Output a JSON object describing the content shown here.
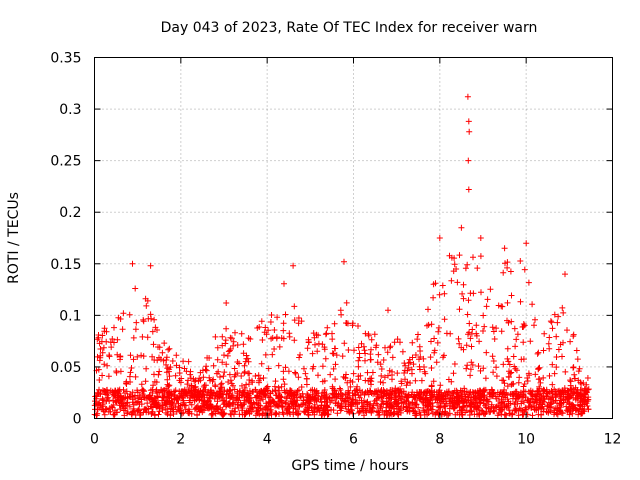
{
  "chart_data": {
    "type": "scatter",
    "title": "Day 043 of 2023, Rate Of TEC Index for receiver warn",
    "xlabel": "GPS time / hours",
    "ylabel": "ROTI / TECUs",
    "xlim": [
      0,
      12
    ],
    "ylim": [
      0,
      0.35
    ],
    "xticks": [
      0,
      2,
      4,
      6,
      8,
      10,
      12
    ],
    "xtick_labels": [
      "0",
      "2",
      "4",
      "6",
      "8",
      "10",
      "12"
    ],
    "yticks": [
      0,
      0.05,
      0.1,
      0.15,
      0.2,
      0.25,
      0.3,
      0.35
    ],
    "ytick_labels": [
      "0",
      "0.05",
      "0.1",
      "0.15",
      "0.2",
      "0.25",
      "0.3",
      "0.35"
    ],
    "grid": true,
    "marker": "+",
    "marker_color": "#ff0000",
    "x_range_of_data": [
      0,
      11.45
    ],
    "notable_points": [
      {
        "x": 0.88,
        "y": 0.15
      },
      {
        "x": 1.3,
        "y": 0.148
      },
      {
        "x": 3.05,
        "y": 0.112
      },
      {
        "x": 4.6,
        "y": 0.148
      },
      {
        "x": 5.78,
        "y": 0.152
      },
      {
        "x": 6.8,
        "y": 0.105
      },
      {
        "x": 8.0,
        "y": 0.175
      },
      {
        "x": 8.5,
        "y": 0.185
      },
      {
        "x": 8.65,
        "y": 0.312
      },
      {
        "x": 8.67,
        "y": 0.288
      },
      {
        "x": 8.68,
        "y": 0.278
      },
      {
        "x": 8.66,
        "y": 0.25
      },
      {
        "x": 8.67,
        "y": 0.222
      },
      {
        "x": 8.95,
        "y": 0.175
      },
      {
        "x": 9.5,
        "y": 0.165
      },
      {
        "x": 10.0,
        "y": 0.17
      },
      {
        "x": 10.9,
        "y": 0.14
      }
    ],
    "envelope": {
      "hours": [
        0,
        0.3,
        0.6,
        0.9,
        1.2,
        1.5,
        2.0,
        2.5,
        3.0,
        3.5,
        4.0,
        4.5,
        5.0,
        5.5,
        5.8,
        6.2,
        6.8,
        7.2,
        7.6,
        8.0,
        8.4,
        8.7,
        9.0,
        9.4,
        9.8,
        10.1,
        10.3,
        10.6,
        10.9,
        11.2,
        11.45
      ],
      "typical_max": [
        0.09,
        0.09,
        0.1,
        0.14,
        0.12,
        0.08,
        0.06,
        0.05,
        0.1,
        0.08,
        0.1,
        0.14,
        0.08,
        0.1,
        0.14,
        0.09,
        0.09,
        0.07,
        0.09,
        0.16,
        0.16,
        0.16,
        0.16,
        0.15,
        0.16,
        0.15,
        0.08,
        0.1,
        0.13,
        0.06,
        0.04
      ],
      "baseline_max": 0.025
    }
  }
}
